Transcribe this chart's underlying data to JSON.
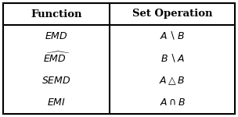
{
  "col_headers": [
    "Function",
    "Set Operation"
  ],
  "rows": [
    {
      "func": "$\\mathit{EMD}$",
      "op": "$A \\setminus B$"
    },
    {
      "func": "$\\widehat{\\mathit{EMD}}$",
      "op": "$B \\setminus A$"
    },
    {
      "func": "$\\mathit{SEMD}$",
      "op": "$A \\triangle B$"
    },
    {
      "func": "$\\mathit{EMI}$",
      "op": "$A \\cap B$"
    }
  ],
  "col_split": 0.46,
  "header_fontsize": 9.5,
  "cell_fontsize": 9,
  "bg_color": "#ffffff",
  "border_color": "#000000"
}
